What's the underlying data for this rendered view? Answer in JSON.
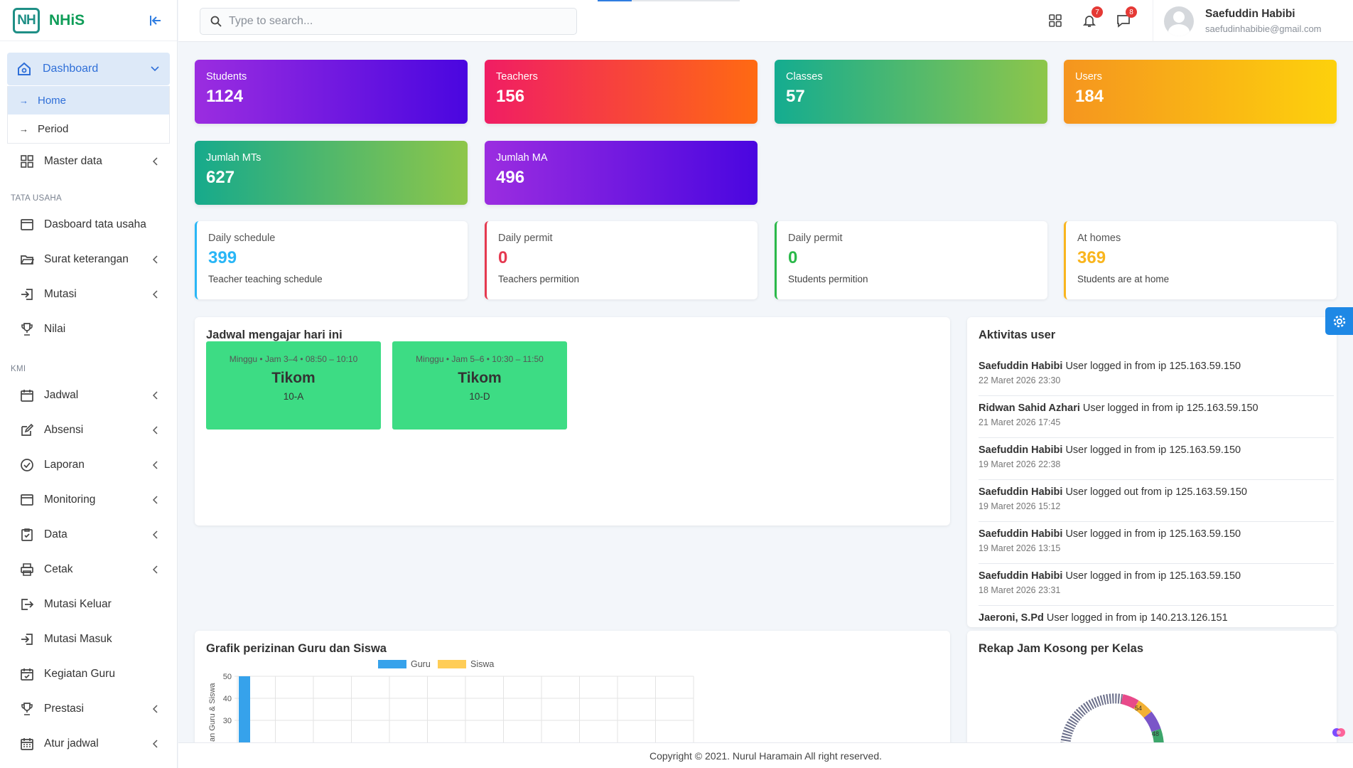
{
  "brand": {
    "logo_text": "NH",
    "name": "NHiS"
  },
  "sidebar": {
    "dashboard": {
      "label": "Dashboard",
      "subitems": [
        {
          "label": "Home"
        },
        {
          "label": "Period"
        }
      ]
    },
    "master_data": "Master data",
    "sections": {
      "tata_usaha": "TATA USAHA",
      "kmi": "KMI"
    },
    "tata_usaha_items": [
      {
        "label": "Dasboard tata usaha",
        "icon": "window-icon"
      },
      {
        "label": "Surat keterangan",
        "icon": "folder-open-icon"
      },
      {
        "label": "Mutasi",
        "icon": "sign-in-icon"
      },
      {
        "label": "Nilai",
        "icon": "trophy-icon"
      }
    ],
    "kmi_items": [
      {
        "label": "Jadwal",
        "icon": "calendar-icon"
      },
      {
        "label": "Absensi",
        "icon": "edit-icon"
      },
      {
        "label": "Laporan",
        "icon": "check-circle-icon"
      },
      {
        "label": "Monitoring",
        "icon": "window-icon"
      },
      {
        "label": "Data",
        "icon": "clipboard-check-icon"
      },
      {
        "label": "Cetak",
        "icon": "printer-icon"
      },
      {
        "label": "Mutasi Keluar",
        "icon": "sign-out-icon"
      },
      {
        "label": "Mutasi Masuk",
        "icon": "sign-in-icon"
      },
      {
        "label": "Kegiatan Guru",
        "icon": "calendar-check-icon"
      },
      {
        "label": "Prestasi",
        "icon": "trophy-icon"
      },
      {
        "label": "Atur jadwal",
        "icon": "calendar-grid-icon"
      }
    ]
  },
  "topbar": {
    "search_placeholder": "Type to search...",
    "notifications_count": "7",
    "messages_count": "8",
    "user_name": "Saefuddin Habibi",
    "user_email": "saefudinhabibie@gmail.com"
  },
  "stats": [
    {
      "label": "Students",
      "value": "1124"
    },
    {
      "label": "Teachers",
      "value": "156"
    },
    {
      "label": "Classes",
      "value": "57"
    },
    {
      "label": "Users",
      "value": "184"
    },
    {
      "label": "Jumlah MTs",
      "value": "627"
    },
    {
      "label": "Jumlah MA",
      "value": "496"
    }
  ],
  "info_cards": [
    {
      "label": "Daily schedule",
      "value": "399",
      "sub": "Teacher teaching schedule",
      "color": "#29b6f6"
    },
    {
      "label": "Daily permit",
      "value": "0",
      "sub": "Teachers permition",
      "color": "#e53950"
    },
    {
      "label": "Daily permit",
      "value": "0",
      "sub": "Students permition",
      "color": "#2bb94a"
    },
    {
      "label": "At homes",
      "value": "369",
      "sub": "Students are at home",
      "color": "#f9b51e"
    }
  ],
  "schedule": {
    "title": "Jadwal mengajar hari ini",
    "items": [
      {
        "meta": "Minggu • Jam 3–4 • 08:50 – 10:10",
        "subject": "Tikom",
        "class": "10-A"
      },
      {
        "meta": "Minggu • Jam 5–6 • 10:30 – 11:50",
        "subject": "Tikom",
        "class": "10-D"
      }
    ]
  },
  "activity": {
    "title": "Aktivitas user",
    "items": [
      {
        "user": "Saefuddin Habibi",
        "text": "User logged in from ip 125.163.59.150",
        "time": "22 Maret 2026 23:30"
      },
      {
        "user": "Ridwan Sahid Azhari",
        "text": "User logged in from ip 125.163.59.150",
        "time": "21 Maret 2026 17:45"
      },
      {
        "user": "Saefuddin Habibi",
        "text": "User logged in from ip 125.163.59.150",
        "time": "19 Maret 2026 22:38"
      },
      {
        "user": "Saefuddin Habibi",
        "text": "User logged out from ip 125.163.59.150",
        "time": "19 Maret 2026 15:12"
      },
      {
        "user": "Saefuddin Habibi",
        "text": "User logged in from ip 125.163.59.150",
        "time": "19 Maret 2026 13:15"
      },
      {
        "user": "Saefuddin Habibi",
        "text": "User logged in from ip 125.163.59.150",
        "time": "18 Maret 2026 23:31"
      },
      {
        "user": "Jaeroni, S.Pd",
        "text": "User logged in from ip 140.213.126.151",
        "time": ""
      }
    ]
  },
  "permit_chart": {
    "title": "Grafik perizinan Guru dan Siswa",
    "chart_data": {
      "type": "bar",
      "series": [
        {
          "name": "Guru",
          "color": "#36a2eb",
          "values": [
            50
          ]
        },
        {
          "name": "Siswa",
          "color": "#ffcd56",
          "values": []
        }
      ],
      "ylabel": "an Guru & Siswa",
      "yticks": [
        "50",
        "40",
        "30"
      ],
      "ylim": [
        30,
        50
      ],
      "grid": true,
      "legend": "top"
    }
  },
  "rekap": {
    "title": "Rekap Jam Kosong per Kelas",
    "labels": [
      "54",
      "48"
    ]
  },
  "footer": "Copyright © 2021. Nurul Haramain All right reserved."
}
